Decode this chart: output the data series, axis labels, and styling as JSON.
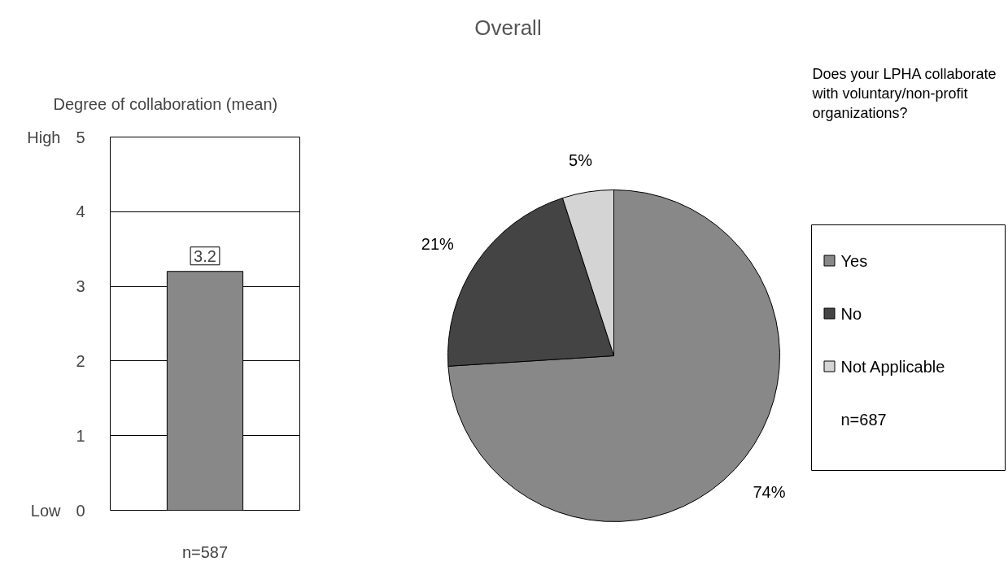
{
  "chart_data": [
    {
      "type": "bar",
      "subtitle": "Degree of collaboration (mean)",
      "xlabel": "n=587",
      "categories": [
        null
      ],
      "values": [
        3.2
      ],
      "color": "#888888",
      "ylim": [
        0,
        5
      ],
      "yticks": [
        0,
        1,
        2,
        3,
        4,
        5
      ],
      "grid": "y",
      "data_labels": true,
      "annotations": [
        "High",
        "Low"
      ]
    },
    {
      "type": "pie",
      "title": "Overall",
      "subtitle": "Does your LPHA collaborate with voluntary/non-profit organizations?",
      "categories": [
        "Yes",
        "No",
        "Not Applicable"
      ],
      "values": [
        74,
        21,
        5
      ],
      "colors": [
        "#888888",
        "#444444",
        "#d4d4d4"
      ],
      "value_labels": [
        "74%",
        "21%",
        "5%"
      ],
      "legend": "right",
      "annotations": [
        "n=687"
      ]
    }
  ]
}
